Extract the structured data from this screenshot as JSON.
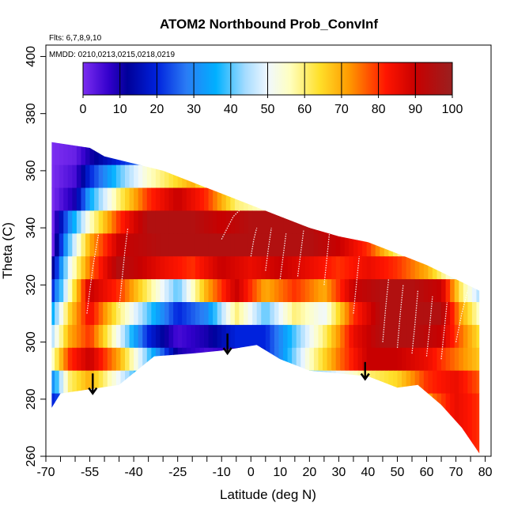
{
  "chart_data": {
    "type": "heatmap",
    "title": "ATOM2 Northbound Prob_ConvInf",
    "flights_note": "Flts: 6,7,8,9,10",
    "dates_note": "MMDD: 0210,0213,0215,0218,0219",
    "xlabel": "Latitude (deg N)",
    "ylabel": "Theta (C)",
    "xlim": [
      -70,
      82
    ],
    "ylim": [
      260,
      404
    ],
    "x_tick_labels": [
      {
        "v": -70,
        "t": "-70"
      },
      {
        "v": -55,
        "t": "-55"
      },
      {
        "v": -40,
        "t": "-40"
      },
      {
        "v": -25,
        "t": "-25"
      },
      {
        "v": -10,
        "t": "-10"
      },
      {
        "v": 0,
        "t": "0"
      },
      {
        "v": 10,
        "t": "10"
      },
      {
        "v": 20,
        "t": "20"
      },
      {
        "v": 30,
        "t": "30"
      },
      {
        "v": 40,
        "t": "40"
      },
      {
        "v": 50,
        "t": "50"
      },
      {
        "v": 60,
        "t": "60"
      },
      {
        "v": 70,
        "t": "70"
      },
      {
        "v": 80,
        "t": "80"
      }
    ],
    "x_minor_ticks": [
      -65,
      -60,
      -50,
      -45,
      -35,
      -30,
      -20,
      -15,
      -5,
      5,
      15,
      25,
      35,
      45,
      55,
      65,
      75
    ],
    "y_ticks": [
      260,
      280,
      300,
      320,
      340,
      360,
      380,
      400
    ],
    "colorbar": {
      "range": [
        0,
        100
      ],
      "ticks": [
        0,
        10,
        20,
        30,
        40,
        50,
        60,
        70,
        80,
        90,
        100
      ],
      "stops": [
        {
          "v": 0,
          "c": "#7b2df0"
        },
        {
          "v": 7,
          "c": "#3300cc"
        },
        {
          "v": 12,
          "c": "#000099"
        },
        {
          "v": 20,
          "c": "#0022dd"
        },
        {
          "v": 28,
          "c": "#2a7cf5"
        },
        {
          "v": 36,
          "c": "#00b0ff"
        },
        {
          "v": 44,
          "c": "#a6dcff"
        },
        {
          "v": 50,
          "c": "#f0f8ff"
        },
        {
          "v": 56,
          "c": "#ffffc0"
        },
        {
          "v": 64,
          "c": "#ffe02a"
        },
        {
          "v": 72,
          "c": "#ff9a00"
        },
        {
          "v": 82,
          "c": "#ff1500"
        },
        {
          "v": 90,
          "c": "#c80000"
        },
        {
          "v": 100,
          "c": "#9a2020"
        }
      ]
    },
    "data_region_top_boundary": [
      [
        -68,
        370
      ],
      [
        -55,
        368
      ],
      [
        -50,
        365
      ],
      [
        -30,
        360
      ],
      [
        -10,
        352
      ],
      [
        0,
        348
      ],
      [
        10,
        344
      ],
      [
        20,
        340
      ],
      [
        30,
        337
      ],
      [
        40,
        335
      ],
      [
        50,
        331
      ],
      [
        60,
        327
      ],
      [
        70,
        322
      ],
      [
        78,
        318
      ]
    ],
    "data_region_bottom_boundary": [
      [
        -68,
        277
      ],
      [
        -65,
        282
      ],
      [
        -58,
        283
      ],
      [
        -45,
        285
      ],
      [
        -33,
        295
      ],
      [
        -20,
        296
      ],
      [
        -10,
        297
      ],
      [
        2,
        299
      ],
      [
        10,
        294
      ],
      [
        20,
        290
      ],
      [
        30,
        289
      ],
      [
        40,
        288
      ],
      [
        50,
        284
      ],
      [
        57,
        285
      ],
      [
        65,
        278
      ],
      [
        72,
        270
      ],
      [
        78,
        261
      ]
    ],
    "probability_field_bands": [
      {
        "y": [
          362,
          372
        ],
        "values": [
          [
            -68,
            0
          ],
          [
            -60,
            2
          ],
          [
            -55,
            10
          ],
          [
            -40,
            25
          ],
          [
            -20,
            35
          ],
          [
            0,
            30
          ],
          [
            20,
            20
          ],
          [
            40,
            10
          ],
          [
            60,
            0
          ],
          [
            80,
            0
          ]
        ]
      },
      {
        "y": [
          354,
          362
        ],
        "values": [
          [
            -68,
            0
          ],
          [
            -60,
            5
          ],
          [
            -55,
            20
          ],
          [
            -45,
            40
          ],
          [
            -35,
            55
          ],
          [
            -20,
            70
          ],
          [
            -10,
            50
          ],
          [
            0,
            35
          ],
          [
            20,
            25
          ],
          [
            40,
            15
          ],
          [
            60,
            5
          ],
          [
            80,
            0
          ]
        ]
      },
      {
        "y": [
          346,
          354
        ],
        "values": [
          [
            -68,
            0
          ],
          [
            -60,
            10
          ],
          [
            -55,
            35
          ],
          [
            -45,
            60
          ],
          [
            -35,
            80
          ],
          [
            -25,
            90
          ],
          [
            -15,
            80
          ],
          [
            -5,
            60
          ],
          [
            5,
            55
          ],
          [
            20,
            40
          ],
          [
            40,
            20
          ],
          [
            60,
            10
          ],
          [
            80,
            0
          ]
        ]
      },
      {
        "y": [
          338,
          346
        ],
        "values": [
          [
            -68,
            0
          ],
          [
            -62,
            30
          ],
          [
            -55,
            55
          ],
          [
            -45,
            80
          ],
          [
            -35,
            95
          ],
          [
            -20,
            95
          ],
          [
            -10,
            90
          ],
          [
            0,
            95
          ],
          [
            10,
            95
          ],
          [
            20,
            95
          ],
          [
            30,
            85
          ],
          [
            40,
            60
          ],
          [
            50,
            40
          ],
          [
            60,
            25
          ],
          [
            80,
            0
          ]
        ]
      },
      {
        "y": [
          330,
          338
        ],
        "values": [
          [
            -68,
            0
          ],
          [
            -62,
            40
          ],
          [
            -55,
            70
          ],
          [
            -45,
            90
          ],
          [
            -30,
            95
          ],
          [
            -15,
            95
          ],
          [
            0,
            95
          ],
          [
            10,
            95
          ],
          [
            20,
            95
          ],
          [
            30,
            90
          ],
          [
            40,
            80
          ],
          [
            50,
            60
          ],
          [
            60,
            40
          ],
          [
            70,
            20
          ],
          [
            80,
            5
          ]
        ]
      },
      {
        "y": [
          322,
          330
        ],
        "values": [
          [
            -68,
            10
          ],
          [
            -62,
            50
          ],
          [
            -55,
            75
          ],
          [
            -45,
            95
          ],
          [
            -30,
            85
          ],
          [
            -20,
            80
          ],
          [
            -10,
            90
          ],
          [
            0,
            85
          ],
          [
            10,
            90
          ],
          [
            20,
            85
          ],
          [
            30,
            80
          ],
          [
            40,
            85
          ],
          [
            50,
            80
          ],
          [
            60,
            70
          ],
          [
            70,
            50
          ],
          [
            80,
            30
          ]
        ]
      },
      {
        "y": [
          314,
          322
        ],
        "values": [
          [
            -68,
            20
          ],
          [
            -62,
            55
          ],
          [
            -55,
            90
          ],
          [
            -45,
            80
          ],
          [
            -35,
            60
          ],
          [
            -25,
            40
          ],
          [
            -15,
            70
          ],
          [
            -5,
            90
          ],
          [
            5,
            70
          ],
          [
            15,
            80
          ],
          [
            25,
            70
          ],
          [
            35,
            90
          ],
          [
            45,
            95
          ],
          [
            55,
            95
          ],
          [
            65,
            90
          ],
          [
            72,
            60
          ],
          [
            80,
            40
          ]
        ]
      },
      {
        "y": [
          306,
          314
        ],
        "values": [
          [
            -68,
            35
          ],
          [
            -62,
            65
          ],
          [
            -55,
            85
          ],
          [
            -45,
            60
          ],
          [
            -35,
            40
          ],
          [
            -25,
            20
          ],
          [
            -15,
            30
          ],
          [
            -5,
            60
          ],
          [
            5,
            40
          ],
          [
            15,
            60
          ],
          [
            25,
            50
          ],
          [
            35,
            80
          ],
          [
            45,
            95
          ],
          [
            55,
            95
          ],
          [
            65,
            95
          ],
          [
            72,
            70
          ],
          [
            80,
            50
          ]
        ]
      },
      {
        "y": [
          298,
          306
        ],
        "values": [
          [
            -68,
            45
          ],
          [
            -62,
            70
          ],
          [
            -55,
            80
          ],
          [
            -45,
            50
          ],
          [
            -35,
            20
          ],
          [
            -25,
            5
          ],
          [
            -15,
            10
          ],
          [
            -5,
            20
          ],
          [
            5,
            20
          ],
          [
            15,
            40
          ],
          [
            25,
            60
          ],
          [
            35,
            85
          ],
          [
            45,
            95
          ],
          [
            55,
            95
          ],
          [
            65,
            90
          ],
          [
            72,
            75
          ],
          [
            80,
            60
          ]
        ]
      },
      {
        "y": [
          290,
          298
        ],
        "values": [
          [
            -68,
            55
          ],
          [
            -62,
            80
          ],
          [
            -55,
            90
          ],
          [
            -45,
            70
          ],
          [
            -35,
            40
          ],
          [
            -25,
            10
          ],
          [
            -15,
            5
          ],
          [
            0,
            10
          ],
          [
            10,
            30
          ],
          [
            20,
            55
          ],
          [
            30,
            75
          ],
          [
            40,
            90
          ],
          [
            50,
            90
          ],
          [
            60,
            85
          ],
          [
            70,
            75
          ],
          [
            80,
            65
          ]
        ]
      },
      {
        "y": [
          282,
          290
        ],
        "values": [
          [
            -68,
            30
          ],
          [
            -62,
            60
          ],
          [
            -55,
            70
          ],
          [
            -45,
            50
          ],
          [
            -35,
            30
          ],
          [
            0,
            20
          ],
          [
            20,
            40
          ],
          [
            40,
            60
          ],
          [
            50,
            65
          ],
          [
            60,
            80
          ],
          [
            70,
            85
          ],
          [
            80,
            75
          ]
        ]
      },
      {
        "y": [
          260,
          282
        ],
        "values": [
          [
            -68,
            20
          ],
          [
            -60,
            30
          ],
          [
            -50,
            25
          ],
          [
            40,
            30
          ],
          [
            55,
            50
          ],
          [
            62,
            75
          ],
          [
            70,
            85
          ],
          [
            78,
            80
          ]
        ]
      }
    ],
    "flight_tracks": [
      [
        [
          -56,
          310
        ],
        [
          -55,
          318
        ],
        [
          -54,
          326
        ],
        [
          -53,
          332
        ],
        [
          -52,
          338
        ]
      ],
      [
        [
          -45,
          312
        ],
        [
          -44,
          322
        ],
        [
          -43,
          332
        ],
        [
          -42,
          340
        ]
      ],
      [
        [
          -10,
          336
        ],
        [
          -8,
          340
        ],
        [
          -6,
          344
        ],
        [
          -4,
          346
        ]
      ],
      [
        [
          0,
          330
        ],
        [
          1,
          336
        ],
        [
          2,
          340
        ]
      ],
      [
        [
          5,
          325
        ],
        [
          6,
          333
        ],
        [
          7,
          340
        ]
      ],
      [
        [
          10,
          322
        ],
        [
          11,
          330
        ],
        [
          12,
          338
        ]
      ],
      [
        [
          16,
          323
        ],
        [
          17,
          331
        ],
        [
          18,
          339
        ]
      ],
      [
        [
          25,
          320
        ],
        [
          26,
          330
        ],
        [
          27,
          340
        ]
      ],
      [
        [
          35,
          310
        ],
        [
          36,
          320
        ],
        [
          37,
          330
        ]
      ],
      [
        [
          45,
          300
        ],
        [
          46,
          312
        ],
        [
          47,
          322
        ]
      ],
      [
        [
          50,
          298
        ],
        [
          51,
          310
        ],
        [
          52,
          320
        ]
      ],
      [
        [
          55,
          296
        ],
        [
          56,
          306
        ],
        [
          57,
          318
        ]
      ],
      [
        [
          60,
          295
        ],
        [
          61,
          305
        ],
        [
          62,
          316
        ]
      ],
      [
        [
          65,
          294
        ],
        [
          66,
          304
        ],
        [
          67,
          314
        ]
      ],
      [
        [
          70,
          300
        ],
        [
          72,
          310
        ],
        [
          74,
          318
        ]
      ]
    ],
    "arrows": [
      {
        "x": -54,
        "y_from": 289,
        "y_to": 282
      },
      {
        "x": -8,
        "y_from": 303,
        "y_to": 296
      },
      {
        "x": 39,
        "y_from": 293,
        "y_to": 287
      }
    ]
  }
}
